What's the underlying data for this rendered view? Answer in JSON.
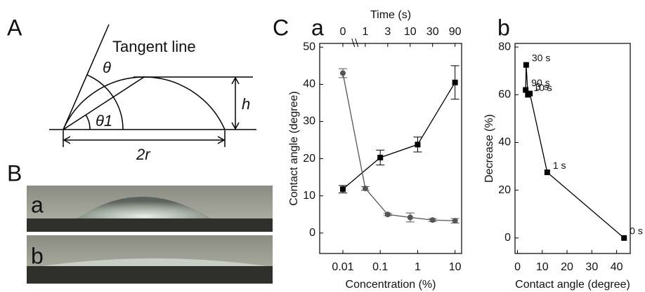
{
  "panel_a": {
    "label": "A",
    "tangent": "Tangent line",
    "theta": "θ",
    "theta1": "θ1",
    "height": "h",
    "width": "2r"
  },
  "panel_b": {
    "label": "B",
    "photo_a": "a",
    "photo_b": "b"
  },
  "chart_data": [
    {
      "type": "line",
      "panel": "C",
      "subpanel": "a",
      "x_label": "Concentration (%)",
      "x2_label": "Time (s)",
      "y_label": "Contact angle (degree)",
      "xscale": "log",
      "xlim": [
        0.0024,
        15
      ],
      "xticks": [
        0.01,
        0.1,
        1,
        10
      ],
      "x2_categories": [
        "0",
        "1",
        "3",
        "10",
        "30",
        "90"
      ],
      "ylim": [
        -5.5,
        51
      ],
      "yticks": [
        0,
        10,
        20,
        30,
        40,
        50
      ],
      "series": [
        {
          "x": [
            0.01,
            0.1,
            1,
            10
          ],
          "values": [
            11.8,
            20.3,
            23.8,
            40.5
          ],
          "errors": [
            1,
            2,
            2,
            4.5
          ],
          "color": "#000000",
          "marker": "square"
        },
        {
          "axis": "x2",
          "values": [
            43,
            12,
            5,
            4.2,
            3.5,
            3.3
          ],
          "errors": [
            1.2,
            0.5,
            0.3,
            1.2,
            0.4,
            0.6
          ],
          "color": "#555555",
          "marker": "circle"
        }
      ]
    },
    {
      "type": "line",
      "subpanel": "b",
      "x_label": "Contact angle (degree)",
      "y_label": "Decrease (%)",
      "xlim": [
        -1,
        45.5
      ],
      "xticks": [
        0,
        10,
        20,
        30,
        40
      ],
      "ylim": [
        -6.5,
        81.5
      ],
      "yticks": [
        0,
        20,
        40,
        60,
        80
      ],
      "series": [
        {
          "x": [
            43,
            12,
            5,
            4.2,
            3.5,
            3.3
          ],
          "values": [
            0,
            27.5,
            60.5,
            60,
            72.5,
            62
          ],
          "point_labels": [
            "0 s",
            "1 s",
            "3 s",
            "10 s",
            "30 s",
            "90 s"
          ],
          "color": "#000000",
          "marker": "square"
        }
      ]
    }
  ]
}
